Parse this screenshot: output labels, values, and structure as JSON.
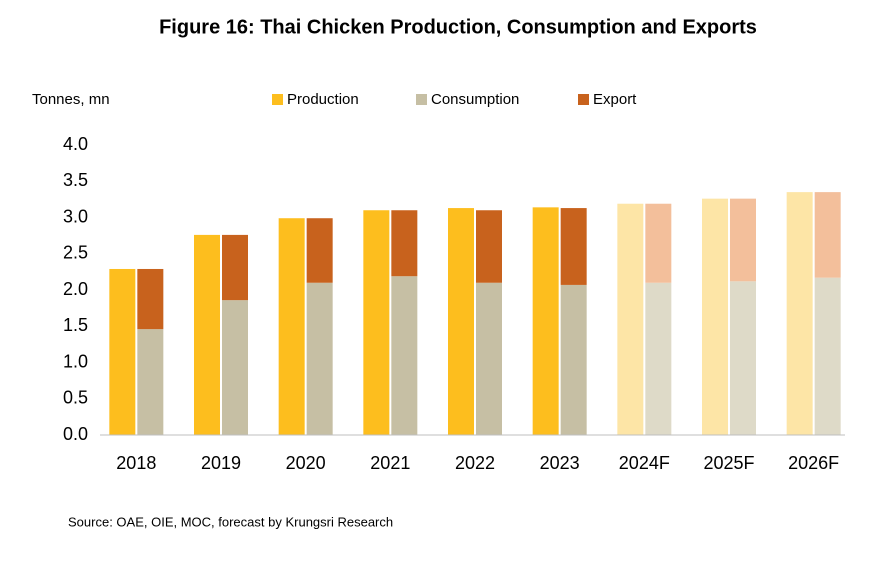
{
  "chart_data": {
    "type": "bar",
    "title": "Figure 16: Thai Chicken Production, Consumption and Exports",
    "ylabel": "Tonnes, mn",
    "source": "Source: OAE, OIE, MOC, forecast by Krungsri Research",
    "categories": [
      "2018",
      "2019",
      "2020",
      "2021",
      "2022",
      "2023",
      "2024F",
      "2025F",
      "2026F"
    ],
    "series": [
      {
        "name": "Production",
        "color": "#FDBE1E",
        "colors": [
          "#FDBE1E",
          "#FDBE1E",
          "#FDBE1E",
          "#FDBE1E",
          "#FDBE1E",
          "#FDBE1E",
          "#FDE5A6",
          "#FDE5A6",
          "#FDE5A6"
        ],
        "values": [
          2.29,
          2.76,
          2.99,
          3.1,
          3.13,
          3.14,
          3.19,
          3.26,
          3.35
        ]
      },
      {
        "name": "Consumption",
        "color": "#C6BFA4",
        "colors": [
          "#C6BFA4",
          "#C6BFA4",
          "#C6BFA4",
          "#C6BFA4",
          "#C6BFA4",
          "#C6BFA4",
          "#DEDAC8",
          "#DEDAC8",
          "#DEDAC8"
        ],
        "values": [
          1.46,
          1.86,
          2.1,
          2.19,
          2.1,
          2.07,
          2.1,
          2.12,
          2.17
        ]
      },
      {
        "name": "Export",
        "color": "#C8621D",
        "colors": [
          "#C8621D",
          "#C8621D",
          "#C8621D",
          "#C8621D",
          "#C8621D",
          "#C8621D",
          "#F3BF9B",
          "#F3BF9B",
          "#F3BF9B"
        ],
        "values": [
          0.83,
          0.9,
          0.89,
          0.91,
          1.0,
          1.06,
          1.09,
          1.14,
          1.18
        ]
      }
    ],
    "ylim": [
      0,
      4
    ],
    "yticks": [
      {
        "value": 0,
        "label": "0.0"
      },
      {
        "value": 0.5,
        "label": "0.5"
      },
      {
        "value": 1,
        "label": "1.0"
      },
      {
        "value": 1.5,
        "label": "1.5"
      },
      {
        "value": 2,
        "label": "2.0"
      },
      {
        "value": 2.5,
        "label": "2.5"
      },
      {
        "value": 3,
        "label": "3.0"
      },
      {
        "value": 3.5,
        "label": "3.5"
      },
      {
        "value": 4,
        "label": "4.0"
      }
    ],
    "grid": false,
    "legend": "top"
  }
}
